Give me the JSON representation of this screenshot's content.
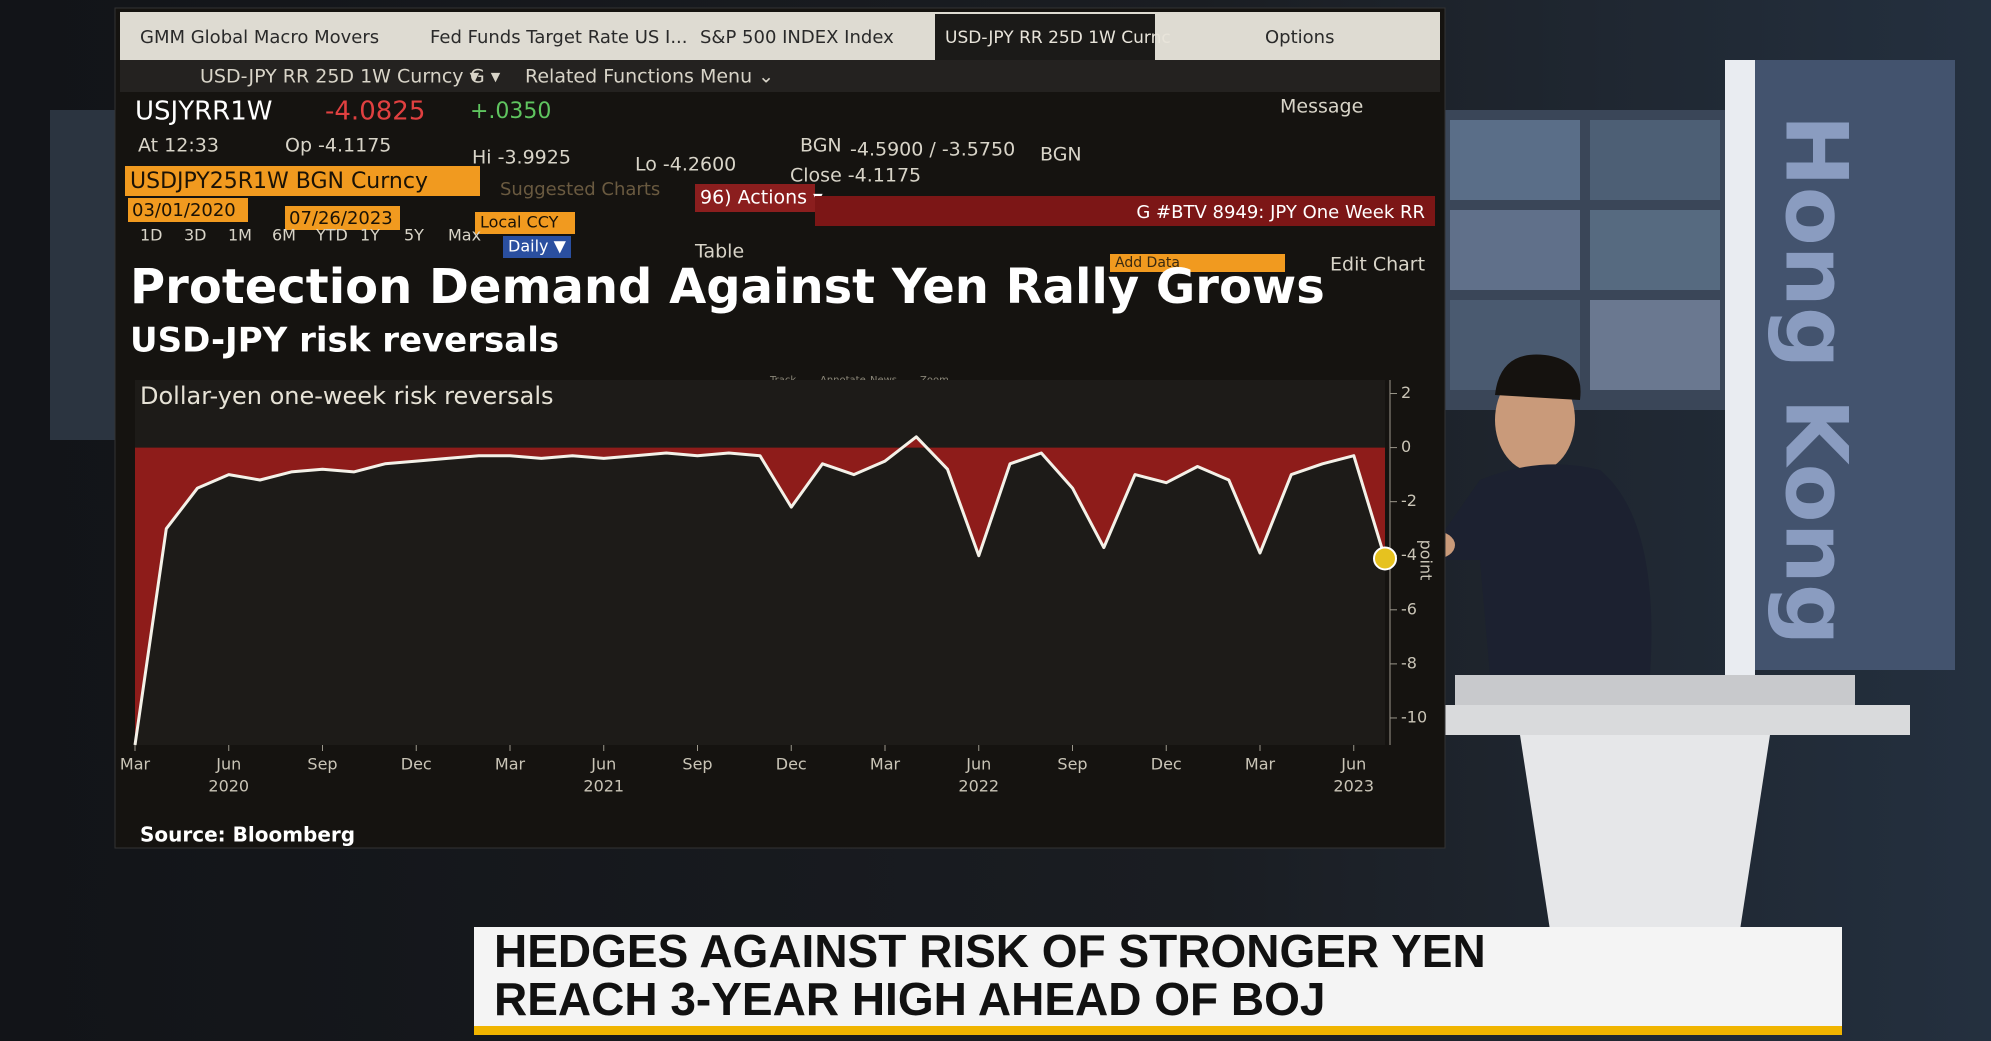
{
  "tabs": [
    "GMM Global Macro Movers",
    "Fed Funds Target Rate US I...",
    "S&P 500 INDEX Index",
    "USD-JPY RR 25D 1W Curnc"
  ],
  "window_options": "Options",
  "toolbar": {
    "security": "USD-JPY RR 25D 1W Curncy ▾",
    "g": "G ▾",
    "menu": "Related Functions Menu ⌄",
    "message": "Message"
  },
  "quote": {
    "ticker": "USJYRR1W",
    "last": "-4.0825",
    "change": "+.0350",
    "time": "At 12:33",
    "open": "Op -4.1175",
    "high": "Hi -3.9925",
    "low": "Lo -4.2600",
    "bgn_label": "BGN",
    "bid_ask": "-4.5900 / -3.5750",
    "bgn_label2": "BGN",
    "close": "Close -4.1175"
  },
  "bar": {
    "security_code": "USDJPY25R1W BGN Curncy",
    "suggested": "Suggested Charts",
    "actions": "96) Actions ▾",
    "page": "G #BTV 8949: JPY One Week RR"
  },
  "range": {
    "start": "03/01/2020",
    "end": "07/26/2023",
    "currency": "Local CCY"
  },
  "periods": [
    "1D",
    "3D",
    "1M",
    "6M",
    "YTD",
    "1Y",
    "5Y",
    "Max"
  ],
  "frequency": "Daily ▼",
  "table": "Table",
  "add_data": "Add Data",
  "edit_chart": "Edit Chart",
  "chart_tools": [
    "Track",
    "Annotate",
    "News",
    "Zoom"
  ],
  "chart_data": {
    "type": "area",
    "title": "Protection Demand Against Yen Rally Grows",
    "subtitle": "USD-JPY risk reversals",
    "series_name": "Dollar-yen one-week risk reversals",
    "y_label": "point",
    "source": "Source: Bloomberg",
    "x": [
      "2020-03",
      "2020-04",
      "2020-05",
      "2020-06",
      "2020-07",
      "2020-08",
      "2020-09",
      "2020-10",
      "2020-11",
      "2020-12",
      "2021-01",
      "2021-02",
      "2021-03",
      "2021-04",
      "2021-05",
      "2021-06",
      "2021-07",
      "2021-08",
      "2021-09",
      "2021-10",
      "2021-11",
      "2021-12",
      "2022-01",
      "2022-02",
      "2022-03",
      "2022-04",
      "2022-05",
      "2022-06",
      "2022-07",
      "2022-08",
      "2022-09",
      "2022-10",
      "2022-11",
      "2022-12",
      "2023-01",
      "2023-02",
      "2023-03",
      "2023-04",
      "2023-05",
      "2023-06",
      "2023-07"
    ],
    "values": [
      -11,
      -3,
      -1.5,
      -1,
      -1.2,
      -0.9,
      -0.8,
      -0.9,
      -0.6,
      -0.5,
      -0.4,
      -0.3,
      -0.3,
      -0.4,
      -0.3,
      -0.4,
      -0.3,
      -0.2,
      -0.3,
      -0.2,
      -0.3,
      -2.2,
      -0.6,
      -1.0,
      -0.5,
      0.4,
      -0.8,
      -4.0,
      -0.6,
      -0.2,
      -1.5,
      -3.7,
      -1.0,
      -1.3,
      -0.7,
      -1.2,
      -3.9,
      -1.0,
      -0.6,
      -0.3,
      -4.1
    ],
    "line_color": "#f4f1e8",
    "area_color": "#8e1c1a",
    "marker_color": "#e6c21f",
    "ylim": [
      -11,
      2.5
    ],
    "yticks": [
      2,
      0,
      -2,
      -4,
      -6,
      -8,
      -10
    ],
    "xticks": [
      {
        "value": "2020-03",
        "label": "Mar"
      },
      {
        "value": "2020-06",
        "label": "Jun"
      },
      {
        "value": "2020-09",
        "label": "Sep"
      },
      {
        "value": "2020-12",
        "label": "Dec"
      },
      {
        "value": "2021-03",
        "label": "Mar"
      },
      {
        "value": "2021-06",
        "label": "Jun"
      },
      {
        "value": "2021-09",
        "label": "Sep"
      },
      {
        "value": "2021-12",
        "label": "Dec"
      },
      {
        "value": "2022-03",
        "label": "Mar"
      },
      {
        "value": "2022-06",
        "label": "Jun"
      },
      {
        "value": "2022-09",
        "label": "Sep"
      },
      {
        "value": "2022-12",
        "label": "Dec"
      },
      {
        "value": "2023-03",
        "label": "Mar"
      },
      {
        "value": "2023-06",
        "label": "Jun"
      }
    ],
    "year_labels": [
      {
        "value": "2020-06",
        "label": "2020"
      },
      {
        "value": "2021-06",
        "label": "2021"
      },
      {
        "value": "2022-06",
        "label": "2022"
      },
      {
        "value": "2023-06",
        "label": "2023"
      }
    ]
  },
  "location": "Hong Kong",
  "lower_third": [
    "HEDGES AGAINST RISK OF STRONGER YEN",
    "REACH 3-YEAR HIGH AHEAD OF BOJ"
  ]
}
